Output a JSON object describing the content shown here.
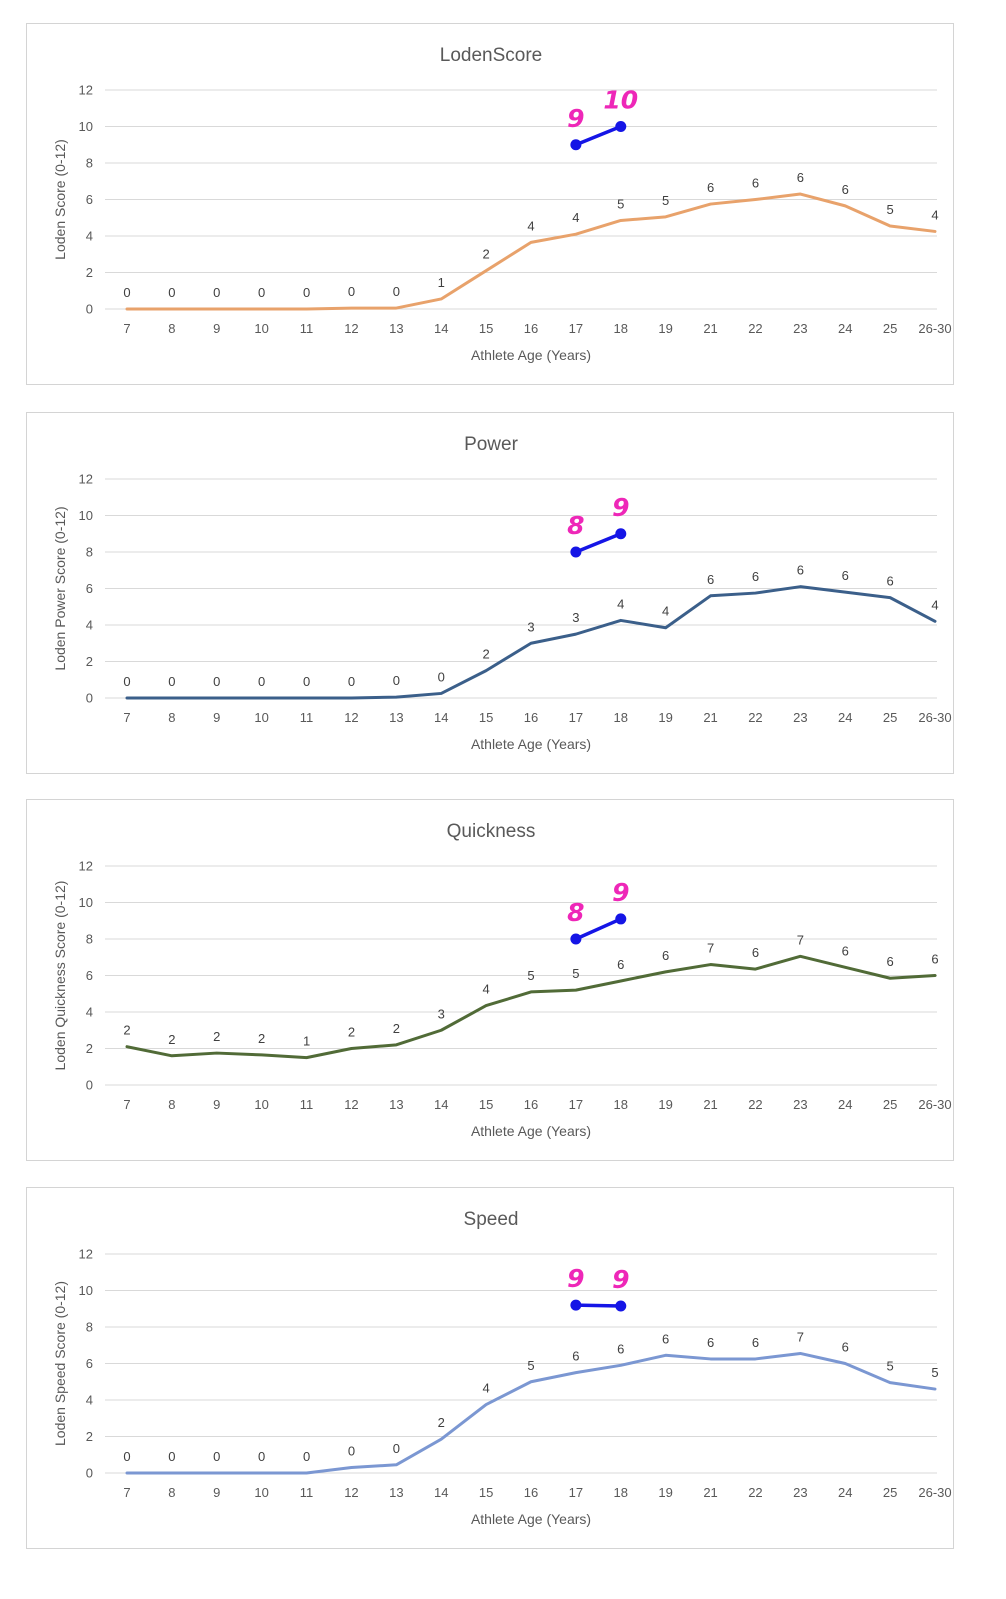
{
  "chart_data": [
    {
      "type": "line",
      "title": "LodenScore",
      "xlabel": "Athlete Age (Years)",
      "ylabel": "Loden  Score (0-12)",
      "ylim": [
        0,
        12
      ],
      "yticks": [
        0,
        2,
        4,
        6,
        8,
        10,
        12
      ],
      "categories": [
        "7",
        "8",
        "9",
        "10",
        "11",
        "12",
        "13",
        "14",
        "15",
        "16",
        "17",
        "18",
        "19",
        "21",
        "22",
        "23",
        "24",
        "25",
        "26-30"
      ],
      "series": [
        {
          "name": "LodenScore",
          "color": "#e8a26b",
          "values": [
            0,
            0,
            0,
            0,
            0,
            0.05,
            0.05,
            0.55,
            2.1,
            3.65,
            4.1,
            4.85,
            5.05,
            5.75,
            6.0,
            6.3,
            5.65,
            4.55,
            4.25
          ],
          "labels": [
            "0",
            "0",
            "0",
            "0",
            "0",
            "0",
            "0",
            "1",
            "2",
            "4",
            "4",
            "5",
            "5",
            "6",
            "6",
            "6",
            "6",
            "5",
            "4"
          ]
        }
      ],
      "annotation": {
        "color": "#1515e6",
        "label_color": "#ee27b8",
        "points": [
          {
            "x": "17",
            "y": 9,
            "label": "9"
          },
          {
            "x": "18",
            "y": 10,
            "label": "10"
          }
        ]
      }
    },
    {
      "type": "line",
      "title": "Power",
      "xlabel": "Athlete Age (Years)",
      "ylabel": "Loden Power Score (0-12)",
      "ylim": [
        0,
        12
      ],
      "yticks": [
        0,
        2,
        4,
        6,
        8,
        10,
        12
      ],
      "categories": [
        "7",
        "8",
        "9",
        "10",
        "11",
        "12",
        "13",
        "14",
        "15",
        "16",
        "17",
        "18",
        "19",
        "21",
        "22",
        "23",
        "24",
        "25",
        "26-30"
      ],
      "series": [
        {
          "name": "Power",
          "color": "#3b5f8a",
          "values": [
            0,
            0,
            0,
            0,
            0,
            0,
            0.05,
            0.25,
            1.5,
            3.0,
            3.5,
            4.25,
            3.85,
            5.6,
            5.75,
            6.1,
            5.8,
            5.5,
            4.2
          ],
          "labels": [
            "0",
            "0",
            "0",
            "0",
            "0",
            "0",
            "0",
            "0",
            "2",
            "3",
            "3",
            "4",
            "4",
            "6",
            "6",
            "6",
            "6",
            "6",
            "4"
          ]
        }
      ],
      "annotation": {
        "color": "#1515e6",
        "label_color": "#ee27b8",
        "points": [
          {
            "x": "17",
            "y": 8,
            "label": "8"
          },
          {
            "x": "18",
            "y": 9,
            "label": "9"
          }
        ]
      }
    },
    {
      "type": "line",
      "title": "Quickness",
      "xlabel": "Athlete Age (Years)",
      "ylabel": "Loden Quickness Score (0-12)",
      "ylim": [
        0,
        12
      ],
      "yticks": [
        0,
        2,
        4,
        6,
        8,
        10,
        12
      ],
      "categories": [
        "7",
        "8",
        "9",
        "10",
        "11",
        "12",
        "13",
        "14",
        "15",
        "16",
        "17",
        "18",
        "19",
        "21",
        "22",
        "23",
        "24",
        "25",
        "26-30"
      ],
      "series": [
        {
          "name": "Quickness",
          "color": "#516b37",
          "values": [
            2.1,
            1.6,
            1.75,
            1.65,
            1.5,
            2.0,
            2.2,
            3.0,
            4.35,
            5.1,
            5.2,
            5.7,
            6.2,
            6.6,
            6.35,
            7.05,
            6.45,
            5.85,
            6.0
          ],
          "labels": [
            "2",
            "2",
            "2",
            "2",
            "1",
            "2",
            "2",
            "3",
            "4",
            "5",
            "5",
            "6",
            "6",
            "7",
            "6",
            "7",
            "6",
            "6",
            "6"
          ]
        }
      ],
      "annotation": {
        "color": "#1515e6",
        "label_color": "#ee27b8",
        "points": [
          {
            "x": "17",
            "y": 8,
            "label": "8"
          },
          {
            "x": "18",
            "y": 9.1,
            "label": "9"
          }
        ]
      }
    },
    {
      "type": "line",
      "title": "Speed",
      "xlabel": "Athlete Age (Years)",
      "ylabel": "Loden Speed Score (0-12)",
      "ylim": [
        0,
        12
      ],
      "yticks": [
        0,
        2,
        4,
        6,
        8,
        10,
        12
      ],
      "categories": [
        "7",
        "8",
        "9",
        "10",
        "11",
        "12",
        "13",
        "14",
        "15",
        "16",
        "17",
        "18",
        "19",
        "21",
        "22",
        "23",
        "24",
        "25",
        "26-30"
      ],
      "series": [
        {
          "name": "Speed",
          "color": "#7b97d2",
          "values": [
            0,
            0,
            0,
            0,
            0,
            0.3,
            0.45,
            1.85,
            3.75,
            5.0,
            5.5,
            5.9,
            6.45,
            6.25,
            6.25,
            6.55,
            6.0,
            4.95,
            4.6
          ],
          "labels": [
            "0",
            "0",
            "0",
            "0",
            "0",
            "0",
            "0",
            "2",
            "4",
            "5",
            "6",
            "6",
            "6",
            "6",
            "6",
            "7",
            "6",
            "5",
            "5"
          ]
        }
      ],
      "annotation": {
        "color": "#1515e6",
        "label_color": "#ee27b8",
        "points": [
          {
            "x": "17",
            "y": 9.2,
            "label": "9"
          },
          {
            "x": "18",
            "y": 9.15,
            "label": "9"
          }
        ]
      }
    }
  ]
}
